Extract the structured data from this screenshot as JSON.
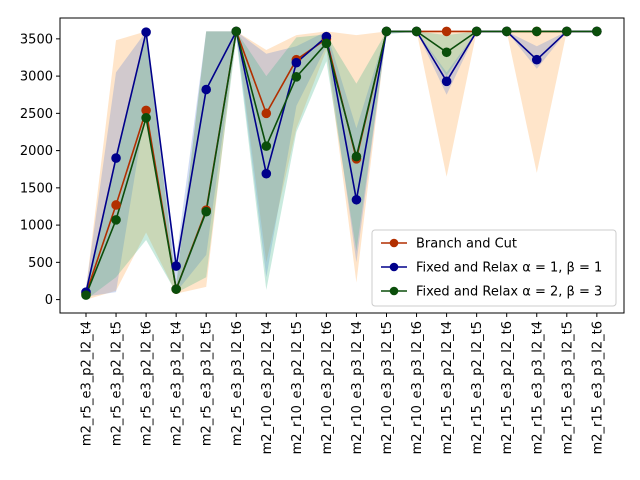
{
  "chart_data": {
    "type": "line",
    "title": "",
    "xlabel": "",
    "ylabel": "",
    "ylim": [
      -180,
      3780
    ],
    "yticks": [
      0,
      500,
      1000,
      1500,
      2000,
      2500,
      3000,
      3500
    ],
    "grid": false,
    "legend_placement": "lower-right",
    "categories": [
      "m2_r5_e3_p2_l2_t4",
      "m2_r5_e3_p2_l2_t5",
      "m2_r5_e3_p2_l2_t6",
      "m2_r5_e3_p3_l2_t4",
      "m2_r5_e3_p3_l2_t5",
      "m2_r5_e3_p3_l2_t6",
      "m2_r10_e3_p2_l2_t4",
      "m2_r10_e3_p2_l2_t5",
      "m2_r10_e3_p2_l2_t6",
      "m2_r10_e3_p3_l2_t4",
      "m2_r10_e3_p3_l2_t5",
      "m2_r10_e3_p3_l2_t6",
      "m2_r15_e3_p2_l2_t4",
      "m2_r15_e3_p2_l2_t5",
      "m2_r15_e3_p2_l2_t6",
      "m2_r15_e3_p3_l2_t4",
      "m2_r15_e3_p3_l2_t5",
      "m2_r15_e3_p3_l2_t6"
    ],
    "series": [
      {
        "name": "Branch and Cut",
        "color": "#b22f00",
        "band_color": "#ffa040",
        "values": [
          80,
          1270,
          2540,
          140,
          1200,
          3600,
          2500,
          3220,
          3500,
          1890,
          3600,
          3600,
          3600,
          3600,
          3600,
          3600,
          3600,
          3600
        ],
        "band_low": [
          0,
          120,
          900,
          80,
          170,
          3600,
          500,
          2300,
          3350,
          230,
          3600,
          3600,
          1650,
          3600,
          3600,
          1700,
          3600,
          3600
        ],
        "band_high": [
          150,
          3480,
          3600,
          200,
          3600,
          3600,
          3350,
          3550,
          3600,
          3550,
          3600,
          3600,
          3600,
          3600,
          3600,
          3600,
          3600,
          3600
        ]
      },
      {
        "name": "Fixed and Relax $\\alpha = 1, \\beta = 1$",
        "legend_label": "Fixed and Relax α = 1, β = 1",
        "color": "#00008b",
        "band_color": "#5b82d6",
        "values": [
          100,
          1900,
          3590,
          450,
          2820,
          3600,
          1690,
          3180,
          3530,
          1340,
          3600,
          3600,
          2930,
          3600,
          3600,
          3220,
          3600,
          3600
        ],
        "band_low": [
          40,
          100,
          2600,
          100,
          600,
          3550,
          300,
          2600,
          3400,
          500,
          3580,
          3600,
          2750,
          3600,
          3600,
          3100,
          3600,
          3600
        ],
        "band_high": [
          160,
          3050,
          3600,
          550,
          3600,
          3600,
          3300,
          3400,
          3600,
          2300,
          3600,
          3600,
          3050,
          3600,
          3600,
          3400,
          3600,
          3600
        ]
      },
      {
        "name": "Fixed and Relax $\\alpha = 2, \\beta = 3$",
        "legend_label": "Fixed and Relax α = 2, β = 3",
        "color": "#0b4e0b",
        "band_color": "#3cb48a",
        "values": [
          60,
          1070,
          2440,
          140,
          1180,
          3600,
          2060,
          2990,
          3440,
          1920,
          3600,
          3600,
          3320,
          3600,
          3600,
          3600,
          3600,
          3600
        ],
        "band_low": [
          0,
          300,
          800,
          90,
          300,
          3500,
          130,
          2250,
          3200,
          650,
          3560,
          3600,
          3000,
          3600,
          3600,
          3600,
          3600,
          3600
        ],
        "band_high": [
          120,
          1900,
          3550,
          200,
          3600,
          3600,
          3000,
          3520,
          3560,
          2900,
          3600,
          3600,
          3550,
          3600,
          3600,
          3600,
          3600,
          3600
        ]
      }
    ]
  }
}
